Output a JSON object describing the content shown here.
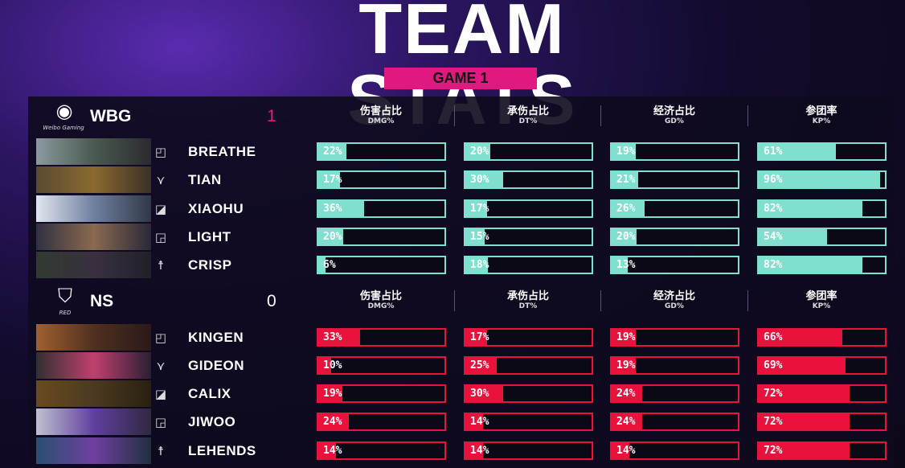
{
  "title": "TEAM STATS",
  "game": "GAME 1",
  "columns": [
    {
      "cn": "伤害占比",
      "en": "DMG%"
    },
    {
      "cn": "承伤占比",
      "en": "DT%"
    },
    {
      "cn": "经济占比",
      "en": "GD%"
    },
    {
      "cn": "参团率",
      "en": "KP%"
    }
  ],
  "teams": [
    {
      "name": "WBG",
      "logo_text": "Weibo Gaming",
      "logo": "weibo-logo",
      "score": "1",
      "color": "#7fe0cf",
      "score_color": "#e0187f",
      "players": [
        {
          "name": "BREATHE",
          "role": "top",
          "stats": [
            22,
            20,
            19,
            61
          ]
        },
        {
          "name": "TIAN",
          "role": "jungle",
          "stats": [
            17,
            30,
            21,
            96
          ]
        },
        {
          "name": "XIAOHU",
          "role": "mid",
          "stats": [
            36,
            17,
            26,
            82
          ]
        },
        {
          "name": "LIGHT",
          "role": "bot",
          "stats": [
            20,
            15,
            20,
            54
          ]
        },
        {
          "name": "CRISP",
          "role": "support",
          "stats": [
            6,
            18,
            13,
            82
          ]
        }
      ]
    },
    {
      "name": "NS",
      "logo_text": "RED",
      "logo": "ns-shield-logo",
      "score": "0",
      "color": "#e8123c",
      "score_color": "#ffffff",
      "players": [
        {
          "name": "KINGEN",
          "role": "top",
          "stats": [
            33,
            17,
            19,
            66
          ]
        },
        {
          "name": "GIDEON",
          "role": "jungle",
          "stats": [
            10,
            25,
            19,
            69
          ]
        },
        {
          "name": "CALIX",
          "role": "mid",
          "stats": [
            19,
            30,
            24,
            72
          ]
        },
        {
          "name": "JIWOO",
          "role": "bot",
          "stats": [
            24,
            14,
            24,
            72
          ]
        },
        {
          "name": "LEHENDS",
          "role": "support",
          "stats": [
            14,
            14,
            14,
            72
          ]
        }
      ]
    }
  ]
}
